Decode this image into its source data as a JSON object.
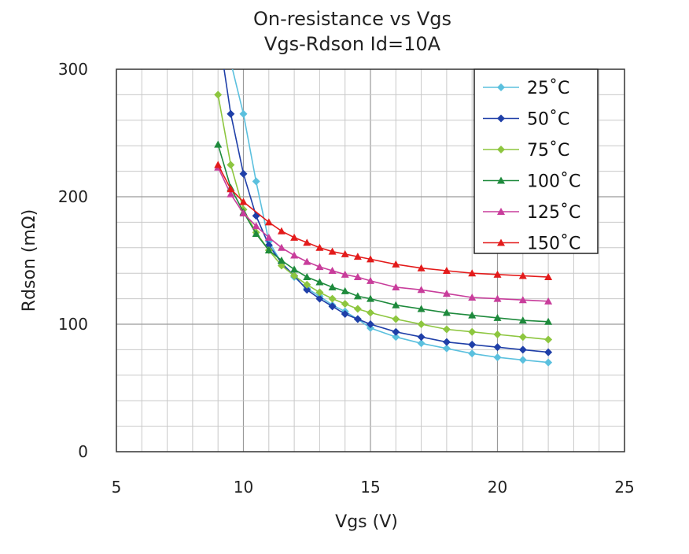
{
  "chart_data": {
    "type": "line",
    "title": "On-resistance vs Vgs",
    "subtitle": "Vgs-Rdson Id=10A",
    "xlabel": "Vgs (V)",
    "ylabel": "Rdson (mΩ)",
    "xlim": [
      5,
      25
    ],
    "ylim": [
      0,
      300
    ],
    "xticks": [
      "5",
      "10",
      "15",
      "20",
      "25"
    ],
    "yticks": [
      "0",
      "100",
      "200",
      "300"
    ],
    "grid": true,
    "legend_position": "top-right",
    "series": [
      {
        "name": "25˚C",
        "color": "#5bc0de",
        "marker": "diamond",
        "points": [
          [
            9.2,
            330
          ],
          [
            10,
            265
          ],
          [
            10.5,
            212
          ],
          [
            11,
            165
          ],
          [
            11.5,
            148
          ],
          [
            12,
            137
          ],
          [
            12.5,
            128
          ],
          [
            13,
            122
          ],
          [
            13.5,
            115
          ],
          [
            14,
            110
          ],
          [
            14.5,
            104
          ],
          [
            15,
            97
          ],
          [
            16,
            90
          ],
          [
            17,
            85
          ],
          [
            18,
            81
          ],
          [
            19,
            77
          ],
          [
            20,
            74
          ],
          [
            21,
            72
          ],
          [
            22,
            70
          ]
        ]
      },
      {
        "name": "50˚C",
        "color": "#1f3fa8",
        "marker": "diamond",
        "points": [
          [
            9.2,
            305
          ],
          [
            9.5,
            265
          ],
          [
            10,
            218
          ],
          [
            10.5,
            185
          ],
          [
            11,
            162
          ],
          [
            11.5,
            148
          ],
          [
            12,
            138
          ],
          [
            12.5,
            127
          ],
          [
            13,
            120
          ],
          [
            13.5,
            114
          ],
          [
            14,
            108
          ],
          [
            14.5,
            104
          ],
          [
            15,
            100
          ],
          [
            16,
            94
          ],
          [
            17,
            90
          ],
          [
            18,
            86
          ],
          [
            19,
            84
          ],
          [
            20,
            82
          ],
          [
            21,
            80
          ],
          [
            22,
            78
          ]
        ]
      },
      {
        "name": "75˚C",
        "color": "#8dc63f",
        "marker": "diamond",
        "points": [
          [
            9,
            280
          ],
          [
            9.5,
            225
          ],
          [
            10,
            190
          ],
          [
            10.5,
            172
          ],
          [
            11,
            158
          ],
          [
            11.5,
            146
          ],
          [
            12,
            138
          ],
          [
            12.5,
            131
          ],
          [
            13,
            125
          ],
          [
            13.5,
            120
          ],
          [
            14,
            116
          ],
          [
            14.5,
            112
          ],
          [
            15,
            109
          ],
          [
            16,
            104
          ],
          [
            17,
            100
          ],
          [
            18,
            96
          ],
          [
            19,
            94
          ],
          [
            20,
            92
          ],
          [
            21,
            90
          ],
          [
            22,
            88
          ]
        ]
      },
      {
        "name": "100˚C",
        "color": "#1e8a3c",
        "marker": "triangle",
        "points": [
          [
            9,
            241
          ],
          [
            9.5,
            207
          ],
          [
            10,
            188
          ],
          [
            10.5,
            171
          ],
          [
            11,
            158
          ],
          [
            11.5,
            150
          ],
          [
            12,
            143
          ],
          [
            12.5,
            137
          ],
          [
            13,
            133
          ],
          [
            13.5,
            129
          ],
          [
            14,
            126
          ],
          [
            14.5,
            122
          ],
          [
            15,
            120
          ],
          [
            16,
            115
          ],
          [
            17,
            112
          ],
          [
            18,
            109
          ],
          [
            19,
            107
          ],
          [
            20,
            105
          ],
          [
            21,
            103
          ],
          [
            22,
            102
          ]
        ]
      },
      {
        "name": "125˚C",
        "color": "#c83d9b",
        "marker": "triangle",
        "points": [
          [
            9,
            223
          ],
          [
            9.5,
            202
          ],
          [
            10,
            187
          ],
          [
            10.5,
            177
          ],
          [
            11,
            168
          ],
          [
            11.5,
            160
          ],
          [
            12,
            154
          ],
          [
            12.5,
            149
          ],
          [
            13,
            145
          ],
          [
            13.5,
            142
          ],
          [
            14,
            139
          ],
          [
            14.5,
            137
          ],
          [
            15,
            134
          ],
          [
            16,
            129
          ],
          [
            17,
            127
          ],
          [
            18,
            124
          ],
          [
            19,
            121
          ],
          [
            20,
            120
          ],
          [
            21,
            119
          ],
          [
            22,
            118
          ]
        ]
      },
      {
        "name": "150˚C",
        "color": "#e31b1b",
        "marker": "triangle",
        "points": [
          [
            9,
            225
          ],
          [
            9.5,
            206
          ],
          [
            10,
            196
          ],
          [
            11,
            180
          ],
          [
            11.5,
            173
          ],
          [
            12,
            168
          ],
          [
            12.5,
            164
          ],
          [
            13,
            160
          ],
          [
            13.5,
            157
          ],
          [
            14,
            155
          ],
          [
            14.5,
            153
          ],
          [
            15,
            151
          ],
          [
            16,
            147
          ],
          [
            17,
            144
          ],
          [
            18,
            142
          ],
          [
            19,
            140
          ],
          [
            20,
            139
          ],
          [
            21,
            138
          ],
          [
            22,
            137
          ]
        ]
      }
    ]
  }
}
